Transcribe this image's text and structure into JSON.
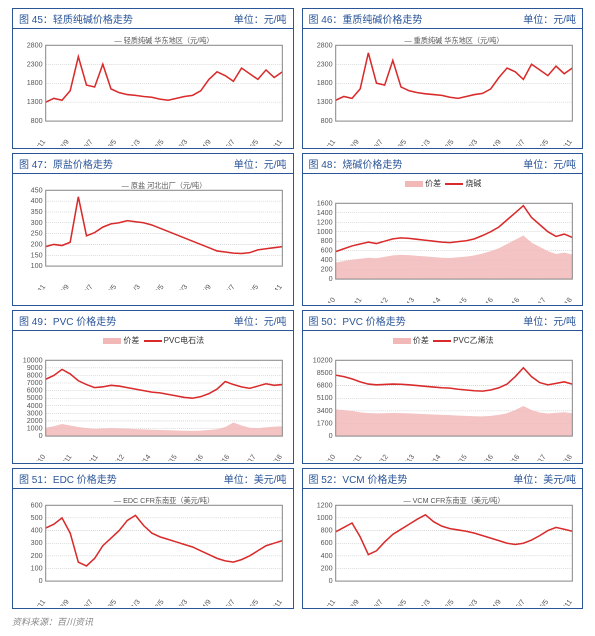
{
  "source": "资料来源：百川资讯",
  "charts": [
    {
      "id": 45,
      "title": "图 45：轻质纯碱价格走势",
      "unit": "单位：元/吨",
      "legend": [
        "轻质纯碱 华东地区（元/吨）"
      ],
      "type": "line",
      "ylim": [
        800,
        2800
      ],
      "ytick_step": 500,
      "xticks": [
        "07/11",
        "08/9",
        "09/7",
        "10/5",
        "11/3",
        "12/5",
        "13/3",
        "14/9",
        "15/7",
        "16/5",
        "17/11"
      ],
      "series": [
        {
          "color": "#d92b2b",
          "data": [
            1300,
            1400,
            1350,
            1600,
            2500,
            1750,
            1700,
            2300,
            1650,
            1550,
            1500,
            1480,
            1450,
            1430,
            1380,
            1350,
            1400,
            1450,
            1480,
            1600,
            1900,
            2100,
            2000,
            1850,
            2200,
            2050,
            1900,
            2150,
            1950,
            2100
          ]
        }
      ]
    },
    {
      "id": 46,
      "title": "图 46：重质纯碱价格走势",
      "unit": "单位：元/吨",
      "legend": [
        "重质纯碱 华东地区（元/吨）"
      ],
      "type": "line",
      "ylim": [
        800,
        2800
      ],
      "ytick_step": 500,
      "xticks": [
        "07/11",
        "08/9",
        "09/7",
        "10/5",
        "11/3",
        "12/5",
        "13/3",
        "14/9",
        "15/7",
        "16/5",
        "17/11"
      ],
      "series": [
        {
          "color": "#d92b2b",
          "data": [
            1350,
            1450,
            1400,
            1650,
            2600,
            1800,
            1750,
            2400,
            1700,
            1600,
            1550,
            1520,
            1500,
            1480,
            1430,
            1400,
            1450,
            1500,
            1530,
            1650,
            1950,
            2200,
            2100,
            1900,
            2300,
            2150,
            2000,
            2250,
            2050,
            2200
          ]
        }
      ]
    },
    {
      "id": 47,
      "title": "图 47：原盐价格走势",
      "unit": "单位：元/吨",
      "legend": [
        "原盐 河北出厂（元/吨）"
      ],
      "type": "line",
      "ylim": [
        100,
        450
      ],
      "ytick_step": 50,
      "xticks": [
        "07/11",
        "08/9",
        "09/7",
        "10/5",
        "11/3",
        "12/5",
        "13/3",
        "14/9",
        "15/7",
        "16/5",
        "17/11"
      ],
      "series": [
        {
          "color": "#d92b2b",
          "data": [
            190,
            200,
            195,
            210,
            420,
            240,
            255,
            280,
            295,
            300,
            310,
            305,
            300,
            290,
            275,
            260,
            245,
            230,
            215,
            200,
            185,
            170,
            165,
            160,
            158,
            162,
            175,
            180,
            185,
            190
          ]
        }
      ]
    },
    {
      "id": 48,
      "title": "图 48：烧碱价格走势",
      "unit": "单位：元/吨",
      "legend2": [
        {
          "k": "价差",
          "t": "fill",
          "c": "#f2b8b8"
        },
        {
          "k": "烧碱",
          "t": "line",
          "c": "#d92b2b"
        }
      ],
      "type": "line+area",
      "ylim": [
        0,
        1600
      ],
      "ytick_step": 200,
      "xticks": [
        "3/10",
        "11/11",
        "7/12",
        "11/13",
        "3/14",
        "11/15",
        "3/16",
        "11/16",
        "9/17",
        "7/18"
      ],
      "area_color": "#f2b8b8",
      "series": [
        {
          "color": "#d92b2b",
          "data": [
            580,
            640,
            700,
            740,
            780,
            750,
            800,
            850,
            870,
            860,
            840,
            820,
            800,
            780,
            770,
            790,
            810,
            850,
            920,
            1000,
            1100,
            1250,
            1400,
            1550,
            1300,
            1150,
            1000,
            900,
            950,
            880
          ]
        }
      ],
      "area": [
        350,
        380,
        410,
        430,
        450,
        440,
        470,
        500,
        510,
        505,
        490,
        480,
        465,
        450,
        445,
        460,
        475,
        500,
        540,
        590,
        650,
        740,
        830,
        920,
        770,
        680,
        590,
        530,
        560,
        520
      ]
    },
    {
      "id": 49,
      "title": "图 49：PVC 价格走势",
      "unit": "单位：元/吨",
      "legend2": [
        {
          "k": "价差",
          "t": "fill",
          "c": "#f2b8b8"
        },
        {
          "k": "PVC电石法",
          "t": "line",
          "c": "#d92b2b"
        }
      ],
      "type": "line+area",
      "ylim": [
        0,
        10000
      ],
      "ytick_step": 1000,
      "xticks": [
        "3/10",
        "10/11",
        "11/11",
        "7/12",
        "5/14",
        "3/15",
        "1/16",
        "11/16",
        "9/17",
        "7/18"
      ],
      "area_color": "#f2b8b8",
      "series": [
        {
          "color": "#d92b2b",
          "data": [
            7500,
            8000,
            8800,
            8200,
            7300,
            6800,
            6400,
            6500,
            6700,
            6600,
            6400,
            6200,
            6000,
            5800,
            5700,
            5500,
            5300,
            5100,
            5000,
            5200,
            5600,
            6200,
            7200,
            6800,
            6500,
            6300,
            6600,
            6900,
            6700,
            6800
          ]
        }
      ],
      "area": [
        1100,
        1300,
        1600,
        1400,
        1200,
        1050,
        950,
        1000,
        1050,
        1020,
        980,
        920,
        880,
        830,
        810,
        780,
        740,
        700,
        690,
        720,
        800,
        900,
        1200,
        1800,
        1400,
        1100,
        1050,
        1150,
        1250,
        1300
      ]
    },
    {
      "id": 50,
      "title": "图 50：PVC 价格走势",
      "unit": "单位：元/吨",
      "legend2": [
        {
          "k": "价差",
          "t": "fill",
          "c": "#f2b8b8"
        },
        {
          "k": "PVC乙烯法",
          "t": "line",
          "c": "#d92b2b"
        }
      ],
      "type": "line+area",
      "ylim": [
        0,
        10200
      ],
      "ytick_step": 1700,
      "xticks": [
        "3/10",
        "11/11",
        "7/12",
        "11/13",
        "3/14",
        "11/15",
        "3/16",
        "11/16",
        "9/17",
        "7/18"
      ],
      "area_color": "#f2b8b8",
      "series": [
        {
          "color": "#d92b2b",
          "data": [
            8200,
            8000,
            7700,
            7300,
            7000,
            6900,
            6950,
            7000,
            6980,
            6900,
            6800,
            6700,
            6600,
            6500,
            6450,
            6300,
            6200,
            6100,
            6050,
            6200,
            6500,
            7000,
            8000,
            9200,
            8000,
            7200,
            6900,
            7100,
            7300,
            7000
          ]
        }
      ],
      "area": [
        3600,
        3500,
        3400,
        3200,
        3100,
        3050,
        3080,
        3100,
        3090,
        3050,
        3000,
        2950,
        2900,
        2850,
        2830,
        2760,
        2720,
        2670,
        2650,
        2720,
        2850,
        3080,
        3520,
        4050,
        3520,
        3170,
        3040,
        3120,
        3210,
        3080
      ]
    },
    {
      "id": 51,
      "title": "图 51：EDC 价格走势",
      "unit": "单位：美元/吨",
      "legend": [
        "EDC CFR东南亚（美元/吨）"
      ],
      "type": "line",
      "ylim": [
        0,
        600
      ],
      "ytick_step": 100,
      "xticks": [
        "07/11",
        "08/9",
        "09/7",
        "10/5",
        "11/3",
        "12/5",
        "13/3",
        "14/9",
        "15/7",
        "16/5",
        "17/11"
      ],
      "series": [
        {
          "color": "#d92b2b",
          "data": [
            420,
            450,
            500,
            380,
            150,
            120,
            180,
            280,
            340,
            400,
            480,
            520,
            440,
            380,
            350,
            330,
            310,
            290,
            270,
            240,
            210,
            180,
            160,
            150,
            170,
            200,
            240,
            280,
            300,
            320
          ]
        }
      ]
    },
    {
      "id": 52,
      "title": "图 52：VCM 价格走势",
      "unit": "单位：美元/吨",
      "legend": [
        "VCM CFR东南亚（美元/吨）"
      ],
      "type": "line",
      "ylim": [
        0,
        1200
      ],
      "ytick_step": 200,
      "xticks": [
        "07/11",
        "08/9",
        "09/7",
        "10/5",
        "11/3",
        "12/5",
        "13/3",
        "14/9",
        "15/7",
        "16/5",
        "17/11"
      ],
      "series": [
        {
          "color": "#d92b2b",
          "data": [
            780,
            850,
            920,
            700,
            420,
            480,
            620,
            740,
            820,
            900,
            980,
            1050,
            940,
            870,
            830,
            810,
            790,
            760,
            720,
            680,
            640,
            600,
            580,
            600,
            650,
            720,
            800,
            850,
            820,
            790
          ]
        }
      ]
    }
  ]
}
